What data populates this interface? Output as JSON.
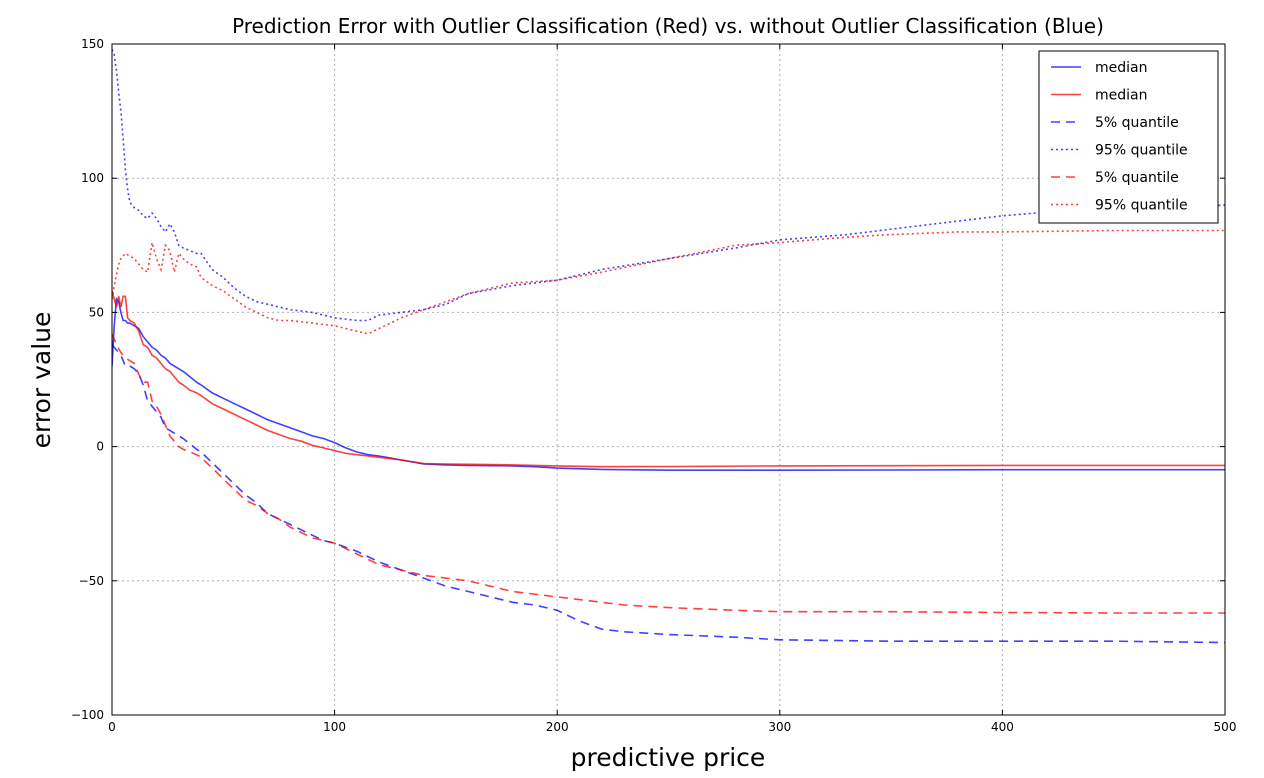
{
  "chart_data": {
    "type": "line",
    "title": "Prediction Error with Outlier Classification (Red) vs. without Outlier Classification (Blue)",
    "xlabel": "predictive price",
    "ylabel": "error value",
    "xlim": [
      0,
      500
    ],
    "ylim": [
      -100,
      150
    ],
    "xticks": [
      0,
      100,
      200,
      300,
      400,
      500
    ],
    "yticks": [
      -100,
      -50,
      0,
      50,
      100,
      150
    ],
    "xtick_labels": [
      "0",
      "100",
      "200",
      "300",
      "400",
      "500"
    ],
    "ytick_labels": [
      "−100",
      "−50",
      "0",
      "50",
      "100",
      "150"
    ],
    "grid": true,
    "legend_position": "top-right",
    "series": [
      {
        "name": "median",
        "color": "#0000ff",
        "linestyle": "solid",
        "x": [
          0,
          1,
          2,
          3,
          4,
          5,
          6,
          7,
          8,
          10,
          12,
          14,
          16,
          18,
          20,
          22,
          24,
          26,
          28,
          30,
          32,
          35,
          38,
          40,
          45,
          50,
          55,
          60,
          65,
          70,
          75,
          80,
          85,
          90,
          95,
          100,
          105,
          110,
          115,
          120,
          130,
          140,
          150,
          160,
          170,
          180,
          190,
          200,
          220,
          250,
          300,
          350,
          400,
          450,
          500
        ],
        "y": [
          30,
          45,
          55,
          54,
          50,
          47,
          47,
          46,
          46,
          45,
          44,
          41,
          39,
          37,
          36,
          34,
          33,
          31,
          30,
          29,
          28,
          26,
          24,
          23,
          20,
          18,
          16,
          14,
          12,
          10,
          8.5,
          7,
          5.5,
          4,
          3,
          1.5,
          -0.5,
          -2,
          -3,
          -3.5,
          -5,
          -6.5,
          -6.8,
          -7,
          -7.1,
          -7.2,
          -7.5,
          -8,
          -8.5,
          -8.8,
          -8.8,
          -8.7,
          -8.6,
          -8.6,
          -8.6
        ]
      },
      {
        "name": "median",
        "color": "#ff0000",
        "linestyle": "solid",
        "x": [
          0,
          1,
          2,
          3,
          4,
          5,
          6,
          7,
          8,
          10,
          12,
          14,
          16,
          18,
          20,
          22,
          24,
          26,
          28,
          30,
          32,
          35,
          38,
          40,
          45,
          50,
          55,
          60,
          65,
          70,
          75,
          80,
          85,
          90,
          95,
          100,
          105,
          110,
          115,
          120,
          130,
          140,
          150,
          160,
          170,
          180,
          190,
          200,
          220,
          250,
          300,
          350,
          400,
          450,
          500
        ],
        "y": [
          58,
          55,
          52,
          56,
          52,
          56,
          56,
          48,
          47,
          46,
          43,
          38,
          37,
          34,
          33,
          31,
          29,
          28,
          26,
          24,
          23,
          21,
          20,
          19,
          16,
          14,
          12,
          10,
          8,
          6,
          4.5,
          3,
          2,
          0.5,
          -0.5,
          -1.5,
          -2.5,
          -3,
          -3.5,
          -4,
          -5,
          -6.3,
          -6.5,
          -6.6,
          -6.7,
          -6.8,
          -7,
          -7.2,
          -7.5,
          -7.4,
          -7.2,
          -7.1,
          -7,
          -7,
          -7
        ]
      },
      {
        "name": "5% quantile",
        "color": "#0000ff",
        "linestyle": "dashed",
        "x": [
          0,
          2,
          4,
          6,
          8,
          10,
          12,
          14,
          16,
          18,
          20,
          22,
          24,
          26,
          28,
          30,
          32,
          35,
          38,
          40,
          45,
          50,
          55,
          60,
          65,
          70,
          75,
          80,
          85,
          90,
          95,
          100,
          110,
          120,
          130,
          140,
          150,
          160,
          170,
          180,
          190,
          200,
          210,
          220,
          230,
          250,
          280,
          300,
          350,
          400,
          450,
          500
        ],
        "y": [
          38,
          36,
          34,
          30,
          30,
          29,
          27,
          23,
          17,
          15,
          13,
          11,
          7,
          6,
          5,
          4,
          3,
          1,
          -1,
          -2,
          -6,
          -10,
          -14,
          -18,
          -21,
          -25,
          -27,
          -29,
          -31,
          -33,
          -35,
          -36,
          -39,
          -43,
          -46,
          -49,
          -52,
          -54,
          -56,
          -58,
          -59,
          -61,
          -65,
          -68,
          -69,
          -70,
          -71,
          -72,
          -72.5,
          -72.5,
          -72.5,
          -73
        ]
      },
      {
        "name": "95% quantile",
        "color": "#0000ff",
        "linestyle": "dotted",
        "x": [
          0,
          1,
          2,
          3,
          4,
          5,
          6,
          7,
          8,
          10,
          12,
          14,
          16,
          18,
          20,
          22,
          24,
          26,
          28,
          30,
          32,
          35,
          38,
          40,
          45,
          50,
          55,
          60,
          65,
          70,
          75,
          80,
          90,
          100,
          110,
          115,
          120,
          130,
          140,
          150,
          160,
          180,
          200,
          220,
          250,
          280,
          300,
          330,
          350,
          380,
          400,
          430,
          450,
          480,
          500
        ],
        "y": [
          148,
          146,
          140,
          132,
          125,
          115,
          103,
          96,
          91,
          89,
          88,
          86,
          85,
          87,
          85,
          82,
          80,
          83,
          80,
          75,
          74,
          73,
          72,
          72,
          66,
          63,
          59,
          56,
          54,
          53,
          52,
          51,
          50,
          48,
          47,
          47,
          49,
          50,
          51,
          53,
          57,
          60,
          62,
          66,
          70,
          74,
          77,
          79,
          81,
          84,
          86,
          88,
          89,
          89,
          90
        ]
      },
      {
        "name": "5% quantile",
        "color": "#ff0000",
        "linestyle": "dashed",
        "x": [
          0,
          2,
          4,
          6,
          8,
          10,
          12,
          14,
          16,
          18,
          20,
          22,
          24,
          26,
          28,
          30,
          32,
          35,
          38,
          40,
          45,
          50,
          55,
          60,
          65,
          70,
          75,
          80,
          85,
          90,
          95,
          100,
          110,
          120,
          130,
          140,
          150,
          160,
          170,
          180,
          190,
          200,
          210,
          220,
          230,
          250,
          280,
          300,
          350,
          400,
          450,
          500
        ],
        "y": [
          42,
          38,
          35,
          33,
          32,
          31,
          27,
          24,
          24,
          17,
          15,
          12,
          8,
          4,
          2,
          0,
          -1,
          -2,
          -3,
          -4,
          -8,
          -12,
          -16,
          -20,
          -22,
          -25,
          -27,
          -30,
          -32,
          -34,
          -35,
          -36,
          -40,
          -44,
          -46,
          -48,
          -49,
          -50,
          -52,
          -54,
          -55,
          -56,
          -57,
          -58,
          -59,
          -60,
          -61,
          -61.5,
          -61.5,
          -61.8,
          -62,
          -62
        ]
      },
      {
        "name": "95% quantile",
        "color": "#ff0000",
        "linestyle": "dotted",
        "x": [
          0,
          1,
          2,
          3,
          4,
          5,
          6,
          8,
          10,
          12,
          14,
          16,
          18,
          20,
          22,
          24,
          26,
          28,
          30,
          32,
          35,
          38,
          40,
          45,
          50,
          55,
          60,
          65,
          70,
          75,
          80,
          90,
          100,
          110,
          115,
          120,
          130,
          140,
          150,
          160,
          180,
          200,
          220,
          250,
          280,
          300,
          330,
          350,
          380,
          400,
          450,
          500
        ],
        "y": [
          55,
          60,
          64,
          68,
          70,
          71,
          72,
          71,
          70,
          68,
          66,
          65,
          76,
          70,
          66,
          75,
          73,
          65,
          72,
          70,
          68,
          67,
          63,
          60,
          58,
          55,
          52,
          50,
          48,
          47,
          47,
          46,
          45,
          43,
          42,
          44,
          48,
          51,
          54,
          57,
          61,
          62,
          65,
          70,
          75,
          76,
          78,
          79,
          80,
          80,
          80.5,
          80.5
        ]
      }
    ]
  }
}
